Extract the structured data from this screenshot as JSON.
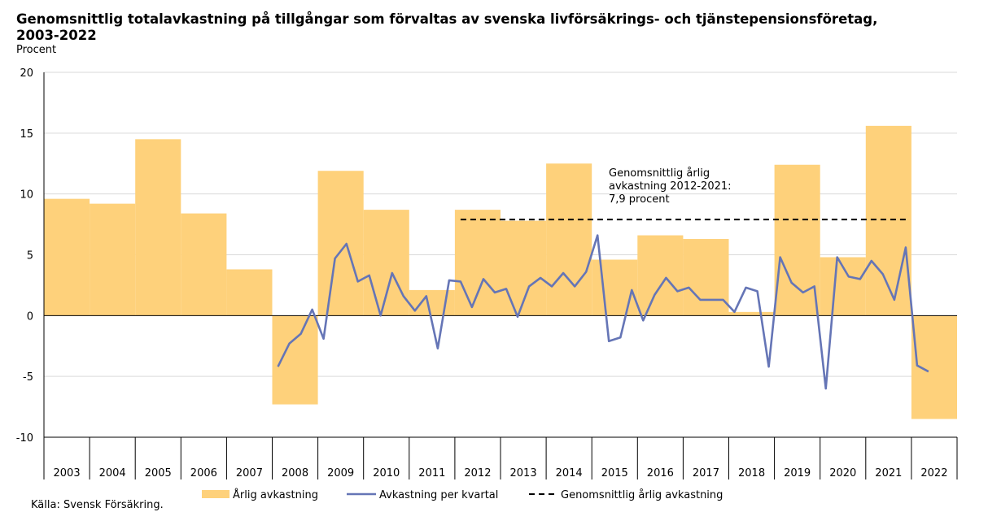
{
  "title": "Genomsnittlig totalavkastning på tillgångar som förvaltas av svenska livförsäkrings- och tjänstepensionsföretag, 2003-2022",
  "unit": "Procent",
  "source": "Källa: Svensk Försäkring.",
  "colors": {
    "bar": "#FED17B",
    "line": "#6575B6",
    "dashed": "#000000",
    "grid": "#D9D9D9"
  },
  "chart_data": {
    "type": "bar",
    "title": "Genomsnittlig totalavkastning på tillgångar som förvaltas av svenska livförsäkrings- och tjänstepensionsföretag, 2003-2022",
    "ylabel": "Procent",
    "ylim": [
      -10,
      20
    ],
    "yticks": [
      20,
      15,
      10,
      5,
      0,
      -5,
      -10
    ],
    "grid": true,
    "legend_position": "bottom",
    "categories": [
      "2003",
      "2004",
      "2005",
      "2006",
      "2007",
      "2008",
      "2009",
      "2010",
      "2011",
      "2012",
      "2013",
      "2014",
      "2015",
      "2016",
      "2017",
      "2018",
      "2019",
      "2020",
      "2021",
      "2022"
    ],
    "series": [
      {
        "name": "Årlig avkastning",
        "kind": "bar",
        "values": [
          9.6,
          9.2,
          14.5,
          8.4,
          3.8,
          -7.3,
          11.9,
          8.7,
          2.1,
          8.7,
          7.8,
          12.5,
          4.6,
          6.6,
          6.3,
          0.3,
          12.4,
          4.8,
          15.6,
          -8.5
        ]
      },
      {
        "name": "Avkastning per kvartal",
        "kind": "line",
        "x": [
          "2008 Q1",
          "2008 Q2",
          "2008 Q3",
          "2008 Q4",
          "2009 Q1",
          "2009 Q2",
          "2009 Q3",
          "2009 Q4",
          "2010 Q1",
          "2010 Q2",
          "2010 Q3",
          "2010 Q4",
          "2011 Q1",
          "2011 Q2",
          "2011 Q3",
          "2011 Q4",
          "2012 Q1",
          "2012 Q2",
          "2012 Q3",
          "2012 Q4",
          "2013 Q1",
          "2013 Q2",
          "2013 Q3",
          "2013 Q4",
          "2014 Q1",
          "2014 Q2",
          "2014 Q3",
          "2014 Q4",
          "2015 Q1",
          "2015 Q2",
          "2015 Q3",
          "2015 Q4",
          "2016 Q1",
          "2016 Q2",
          "2016 Q3",
          "2016 Q4",
          "2017 Q1",
          "2017 Q2",
          "2017 Q3",
          "2017 Q4",
          "2018 Q1",
          "2018 Q2",
          "2018 Q3",
          "2018 Q4",
          "2019 Q1",
          "2019 Q2",
          "2019 Q3",
          "2019 Q4",
          "2020 Q1",
          "2020 Q2",
          "2020 Q3",
          "2020 Q4",
          "2021 Q1",
          "2021 Q2",
          "2021 Q3",
          "2021 Q4",
          "2022 Q1",
          "2022 Q2"
        ],
        "values": [
          -4.2,
          -2.3,
          -1.5,
          0.5,
          -1.9,
          4.7,
          5.9,
          2.8,
          3.3,
          0.0,
          3.5,
          1.6,
          0.4,
          1.6,
          -2.7,
          2.9,
          2.8,
          0.7,
          3.0,
          1.9,
          2.2,
          -0.1,
          2.4,
          3.1,
          2.4,
          3.5,
          2.4,
          3.6,
          6.6,
          -2.1,
          -1.8,
          2.1,
          -0.4,
          1.7,
          3.1,
          2.0,
          2.3,
          1.3,
          1.3,
          1.3,
          0.3,
          2.3,
          2.0,
          -4.2,
          4.8,
          2.7,
          1.9,
          2.4,
          -6.0,
          4.8,
          3.2,
          3.0,
          4.5,
          3.4,
          1.3,
          5.6,
          -4.1,
          -4.6
        ]
      },
      {
        "name": "Genomsnittlig årlig avkastning",
        "kind": "dashed",
        "from": "2012",
        "to": "2021",
        "value": 7.9
      }
    ],
    "annotation": {
      "lines": [
        "Genomsnittlig årlig",
        "avkastning 2012-2021:",
        "7,9 procent"
      ]
    }
  }
}
